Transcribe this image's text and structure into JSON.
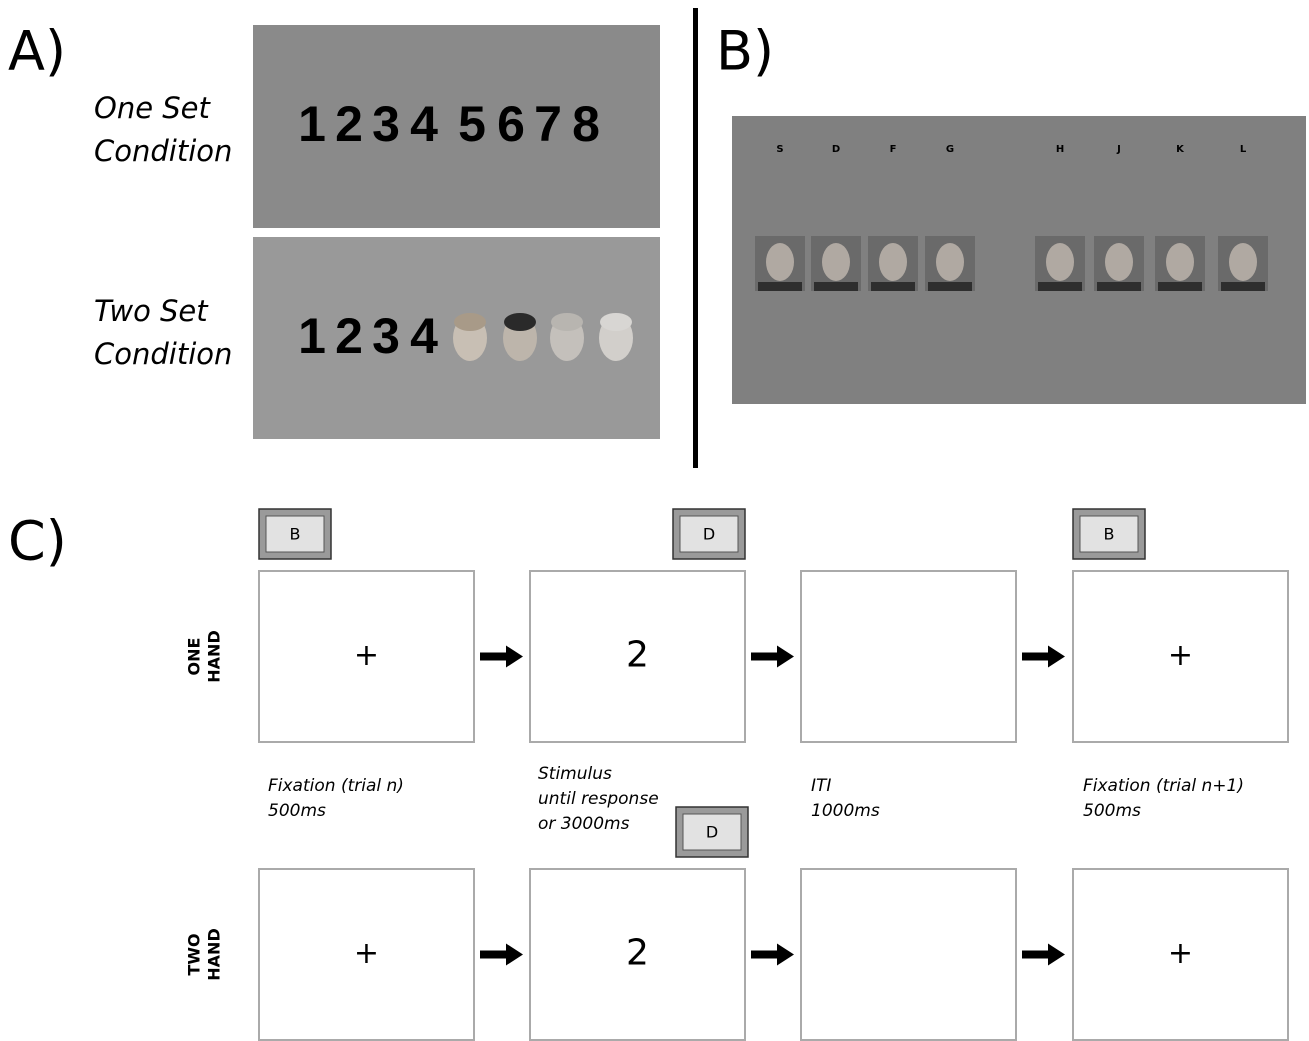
{
  "panel_a": {
    "label": "A)",
    "one_set": {
      "label": [
        "One Set",
        "Condition"
      ],
      "digits": [
        1,
        2,
        3,
        4,
        5,
        6,
        7,
        8
      ]
    },
    "two_set": {
      "label": [
        "Two Set",
        "Condition"
      ],
      "digits": [
        1,
        2,
        3,
        4
      ]
    }
  },
  "panel_b": {
    "label": "B)",
    "keys": [
      "S",
      "D",
      "F",
      "G",
      "H",
      "J",
      "K",
      "L"
    ]
  },
  "panel_c": {
    "label": "C)",
    "rows": [
      {
        "label": [
          "ONE",
          "HAND"
        ],
        "frames": [
          "+",
          2,
          null,
          "+"
        ],
        "keys": [
          "B",
          "D",
          null,
          "B"
        ]
      },
      {
        "label": [
          "TWO",
          "HAND"
        ],
        "frames": [
          "+",
          2,
          null,
          "+"
        ],
        "keys": [
          null,
          "D",
          null,
          null
        ]
      }
    ],
    "captions": [
      [
        "Fixation (trial n)",
        "500ms"
      ],
      [
        "Stimulus",
        "until response",
        "or 3000ms"
      ],
      [
        "ITI",
        "1000ms"
      ],
      [
        "Fixation (trial n+1)",
        "500ms"
      ]
    ]
  }
}
